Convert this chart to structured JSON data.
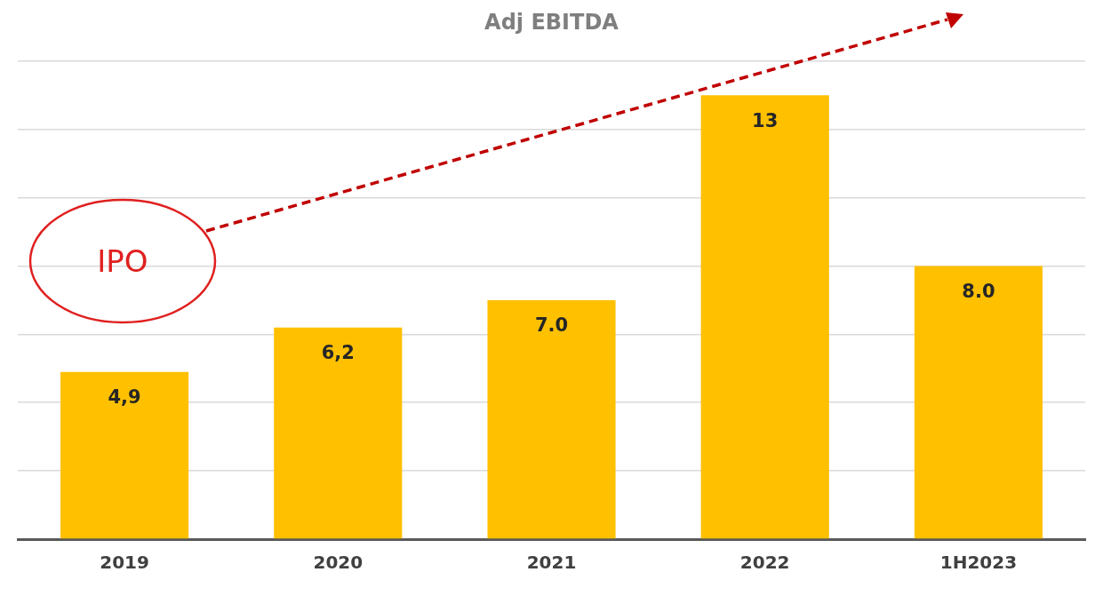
{
  "chart_data": {
    "type": "bar",
    "title": "Adj EBITDA",
    "categories": [
      "2019",
      "2020",
      "2021",
      "2022",
      "1H2023"
    ],
    "values": [
      4.9,
      6.2,
      7.0,
      13,
      8.0
    ],
    "value_labels": [
      "4,9",
      "6,2",
      "7.0",
      "13",
      "8.0"
    ],
    "color": "#ffc000",
    "ylim": [
      0,
      14
    ],
    "yticks": [
      {
        "value": 0,
        "label": null
      },
      {
        "value": 2,
        "label": null
      },
      {
        "value": 4,
        "label": null
      },
      {
        "value": 6,
        "label": null
      },
      {
        "value": 8,
        "label": null
      },
      {
        "value": 10,
        "label": null
      },
      {
        "value": 12,
        "label": null
      },
      {
        "value": 14,
        "label": null
      }
    ],
    "tick_labels": "x",
    "grid": "y",
    "legend": false,
    "annotations": [
      "IPO"
    ]
  }
}
